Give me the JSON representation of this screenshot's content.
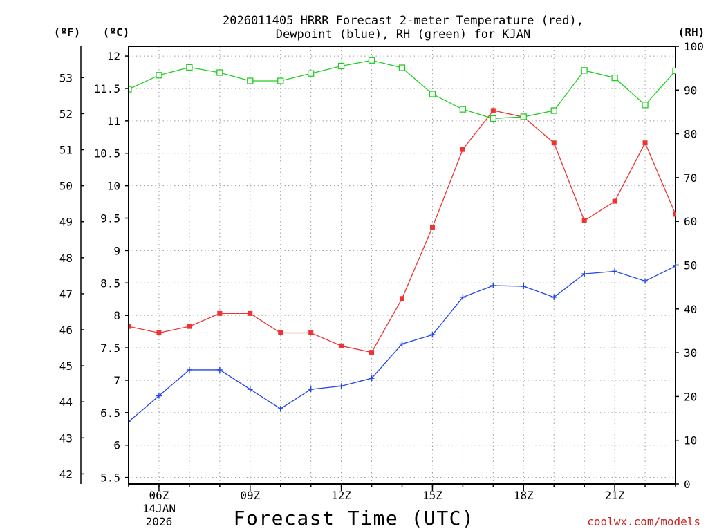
{
  "chart_data": {
    "type": "line",
    "title_line1": "2026011405 HRRR Forecast 2-meter Temperature (red),",
    "title_line2": "Dewpoint (blue), RH (green) for KJAN",
    "xlabel": "Forecast Time (UTC)",
    "ylabel_f": "(ºF)",
    "ylabel_c": "(ºC)",
    "ylabel_rh": "(RH)",
    "credit": "coolwx.com/models",
    "x_hours": [
      5,
      6,
      7,
      8,
      9,
      10,
      11,
      12,
      13,
      14,
      15,
      16,
      17,
      18,
      19,
      20,
      21,
      22,
      23
    ],
    "xlim": [
      5,
      23
    ],
    "x_ticks": [
      {
        "hour": 6,
        "label": "06Z",
        "date_line1": "14JAN",
        "date_line2": "2026"
      },
      {
        "hour": 9,
        "label": "09Z"
      },
      {
        "hour": 12,
        "label": "12Z"
      },
      {
        "hour": 15,
        "label": "15Z"
      },
      {
        "hour": 18,
        "label": "18Z"
      },
      {
        "hour": 21,
        "label": "21Z"
      }
    ],
    "ylim_c": [
      5.4,
      12.15
    ],
    "y_ticks_c": [
      5.5,
      6,
      6.5,
      7,
      7.5,
      8,
      8.5,
      9,
      9.5,
      10,
      10.5,
      11,
      11.5,
      12
    ],
    "y_tick_labels_c": [
      "5.5",
      "6",
      "6.5",
      "7",
      "7.5",
      "8",
      "8.5",
      "9",
      "9.5",
      "10",
      "10.5",
      "11",
      "11.5",
      "12"
    ],
    "y_ticks_f": [
      42,
      43,
      44,
      45,
      46,
      47,
      48,
      49,
      50,
      51,
      52,
      53
    ],
    "y_tick_labels_f": [
      "42",
      "43",
      "44",
      "45",
      "46",
      "47",
      "48",
      "49",
      "50",
      "51",
      "52",
      "53"
    ],
    "ylim_rh": [
      0,
      100
    ],
    "y_ticks_rh": [
      0,
      10,
      20,
      30,
      40,
      50,
      60,
      70,
      80,
      90,
      100
    ],
    "y_tick_labels_rh": [
      "0",
      "10",
      "20",
      "30",
      "40",
      "50",
      "60",
      "70",
      "80",
      "90",
      "100"
    ],
    "grid": true,
    "series": [
      {
        "name": "Temperature",
        "color": "#ee3333",
        "marker": "filled-square",
        "axis": "celsius",
        "values": [
          7.83,
          7.73,
          7.83,
          8.03,
          8.03,
          7.73,
          7.73,
          7.53,
          7.43,
          8.26,
          9.36,
          10.56,
          11.16,
          11.06,
          10.66,
          9.46,
          9.76,
          10.66,
          9.56
        ]
      },
      {
        "name": "Dewpoint",
        "color": "#2244ee",
        "marker": "plus",
        "axis": "celsius",
        "values": [
          6.36,
          6.76,
          7.16,
          7.16,
          6.86,
          6.56,
          6.86,
          6.91,
          7.03,
          7.56,
          7.7,
          8.28,
          8.46,
          8.45,
          8.28,
          8.64,
          8.68,
          8.53,
          8.76
        ]
      },
      {
        "name": "RH",
        "color": "#22cc22",
        "marker": "open-square",
        "axis": "rh",
        "values": [
          90.2,
          93.4,
          95.2,
          94.0,
          92.1,
          92.1,
          93.8,
          95.5,
          96.8,
          95.1,
          89.1,
          85.6,
          83.5,
          83.9,
          85.3,
          94.5,
          92.8,
          86.6,
          94.4
        ]
      }
    ]
  }
}
